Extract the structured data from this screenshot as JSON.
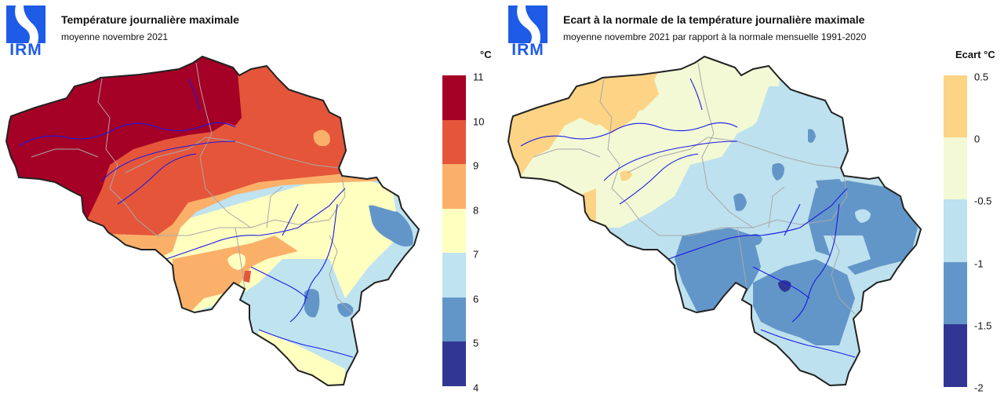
{
  "left_map": {
    "title": "Température journalière maximale",
    "subtitle": "moyenne novembre 2021",
    "unit": "°C",
    "logo_text": "IRM",
    "legend": {
      "ticks": [
        "11",
        "10",
        "9",
        "8",
        "7",
        "6",
        "5",
        "4"
      ],
      "bins": [
        {
          "from": 10,
          "to": 11,
          "color": "#a50026"
        },
        {
          "from": 9,
          "to": 10,
          "color": "#e5553a"
        },
        {
          "from": 8,
          "to": 9,
          "color": "#fbb06a"
        },
        {
          "from": 7,
          "to": 8,
          "color": "#ffffc0"
        },
        {
          "from": 6,
          "to": 7,
          "color": "#bfe3ef"
        },
        {
          "from": 5,
          "to": 6,
          "color": "#6396c8"
        },
        {
          "from": 4,
          "to": 5,
          "color": "#313695"
        }
      ]
    }
  },
  "right_map": {
    "title": "Ecart à la normale de la température journalière maximale",
    "subtitle": "moyenne novembre 2021 par rapport à la normale mensuelle 1991-2020",
    "unit": "Ecart °C",
    "logo_text": "IRM",
    "legend": {
      "ticks": [
        "0.5",
        "0",
        "-0.5",
        "-1",
        "-1.5",
        "-2"
      ],
      "bins": [
        {
          "from": 0,
          "to": 0.5,
          "color": "#fdd485"
        },
        {
          "from": -0.5,
          "to": 0,
          "color": "#f2f9d4"
        },
        {
          "from": -1,
          "to": -0.5,
          "color": "#bde1ee"
        },
        {
          "from": -1.5,
          "to": -1,
          "color": "#6396c8"
        },
        {
          "from": -2,
          "to": -1.5,
          "color": "#313695"
        }
      ]
    }
  },
  "colors": {
    "logo_blue": "#1e5be6",
    "border": "#222222",
    "province_lines": "#a8a8a8",
    "rivers": "#1a1ae6"
  }
}
